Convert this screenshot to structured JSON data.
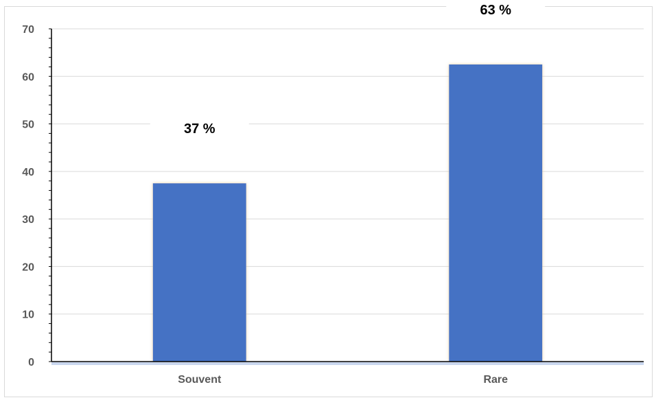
{
  "chart_data": {
    "type": "bar",
    "categories": [
      "Souvent",
      "Rare"
    ],
    "values": [
      37.5,
      62.5
    ],
    "data_labels": [
      "37 %",
      "63 %"
    ],
    "title": "",
    "xlabel": "",
    "ylabel": "",
    "ylim": [
      0,
      70
    ],
    "yticks": [
      0,
      10,
      20,
      30,
      40,
      50,
      60,
      70
    ],
    "grid": true,
    "legend": "none",
    "bar_color": "#4472c4"
  }
}
